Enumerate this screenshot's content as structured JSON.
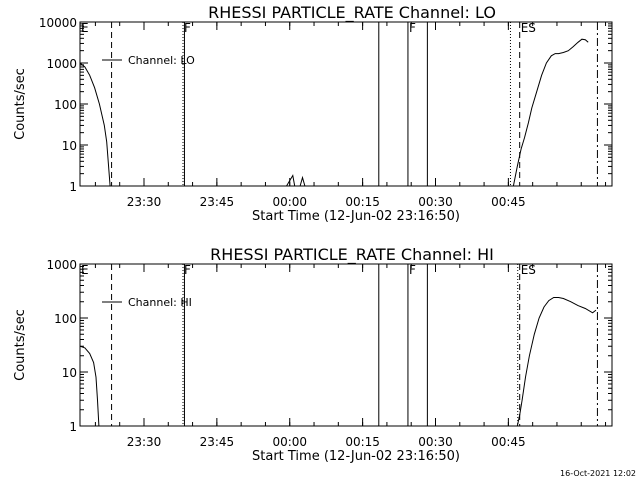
{
  "chart_data": [
    {
      "type": "line",
      "title": "RHESSI PARTICLE_RATE Channel: LO",
      "xlabel": "Start Time (12-Jun-02 23:16:50)",
      "ylabel": "Counts/sec",
      "yscale": "log",
      "ylim": [
        1,
        10000
      ],
      "xlim_minutes": [
        0,
        41.2
      ],
      "y_ticks": [
        1,
        10,
        100,
        1000,
        10000
      ],
      "y_tick_labels": [
        "1",
        "10",
        "100",
        "1000",
        "10000"
      ],
      "x_ticks": [
        13.17,
        28.17,
        43.17,
        58.17,
        73.17,
        88.17
      ],
      "x_tick_labels": [
        "23:30",
        "23:45",
        "00:00",
        "00:15",
        "00:30",
        "00:45"
      ],
      "legend": {
        "label": "Channel: LO",
        "position": "top-left"
      },
      "series": [
        {
          "name": "Channel: LO",
          "x": [
            0,
            1,
            2,
            3,
            4,
            5,
            5.5,
            6.2,
            41.5,
            42.5,
            43.8,
            44.2,
            44.6,
            45.3,
            45.8,
            46.3,
            46.8,
            47.5,
            89.2,
            90.0,
            90.8,
            91.5,
            92.3,
            93.0,
            94.0,
            95.0,
            96.0,
            97.0,
            97.8,
            98.5,
            99.5,
            100.5,
            101.5,
            102.5,
            103.3,
            104.0,
            104.6
          ],
          "y": [
            1000,
            800,
            500,
            250,
            100,
            30,
            12,
            1,
            1,
            1,
            1.8,
            1,
            1,
            1,
            1.6,
            1,
            1,
            1,
            1,
            3,
            8,
            15,
            35,
            80,
            200,
            500,
            1000,
            1500,
            1700,
            1700,
            1800,
            2000,
            2500,
            3200,
            3800,
            3700,
            3200
          ]
        }
      ],
      "vlines": [
        {
          "x": 6.5,
          "style": "dashed"
        },
        {
          "x": 21.2,
          "style": "dotted",
          "flag": "F"
        },
        {
          "x": 21.5,
          "style": "solid"
        },
        {
          "x": 61.5,
          "style": "solid"
        },
        {
          "x": 67.5,
          "style": "solid",
          "flag": "F"
        },
        {
          "x": 71.5,
          "style": "solid"
        },
        {
          "x": 88.6,
          "style": "dotted"
        },
        {
          "x": 90.5,
          "style": "dashed",
          "flag": "ES"
        },
        {
          "x": 106.5,
          "style": "dashdot"
        }
      ],
      "flag_start": "E"
    },
    {
      "type": "line",
      "title": "RHESSI PARTICLE_RATE Channel: HI",
      "xlabel": "Start Time (12-Jun-02 23:16:50)",
      "ylabel": "Counts/sec",
      "yscale": "log",
      "ylim": [
        1,
        1000
      ],
      "y_ticks": [
        1,
        10,
        100,
        1000
      ],
      "y_tick_labels": [
        "1",
        "10",
        "100",
        "1000"
      ],
      "x_ticks": [
        13.17,
        28.17,
        43.17,
        58.17,
        73.17,
        88.17
      ],
      "x_tick_labels": [
        "23:30",
        "23:45",
        "00:00",
        "00:15",
        "00:30",
        "00:45"
      ],
      "legend": {
        "label": "Channel: HI",
        "position": "top-left"
      },
      "series": [
        {
          "name": "Channel: HI",
          "x": [
            0,
            1,
            2,
            2.8,
            3.3,
            3.6,
            3.9,
            90.0,
            90.5,
            91.0,
            91.7,
            92.5,
            93.5,
            94.5,
            95.5,
            96.5,
            97.5,
            98.5,
            99.5,
            101.0,
            102.5,
            104.0,
            105.5,
            106.2
          ],
          "y": [
            30,
            28,
            22,
            15,
            8,
            3,
            1,
            1,
            1.6,
            3,
            8,
            20,
            50,
            100,
            160,
            210,
            240,
            240,
            230,
            200,
            170,
            150,
            125,
            140
          ]
        }
      ],
      "vlines": [
        {
          "x": 6.5,
          "style": "dashed"
        },
        {
          "x": 21.2,
          "style": "dotted",
          "flag": "F"
        },
        {
          "x": 21.5,
          "style": "solid"
        },
        {
          "x": 61.5,
          "style": "solid"
        },
        {
          "x": 67.5,
          "style": "solid",
          "flag": "F"
        },
        {
          "x": 71.5,
          "style": "solid"
        },
        {
          "x": 90.1,
          "style": "dotted"
        },
        {
          "x": 90.5,
          "style": "dashed",
          "flag": "ES"
        },
        {
          "x": 106.5,
          "style": "dashdot"
        }
      ],
      "flag_start": "E"
    }
  ],
  "footer": {
    "timestamp": "16-Oct-2021 12:02"
  }
}
